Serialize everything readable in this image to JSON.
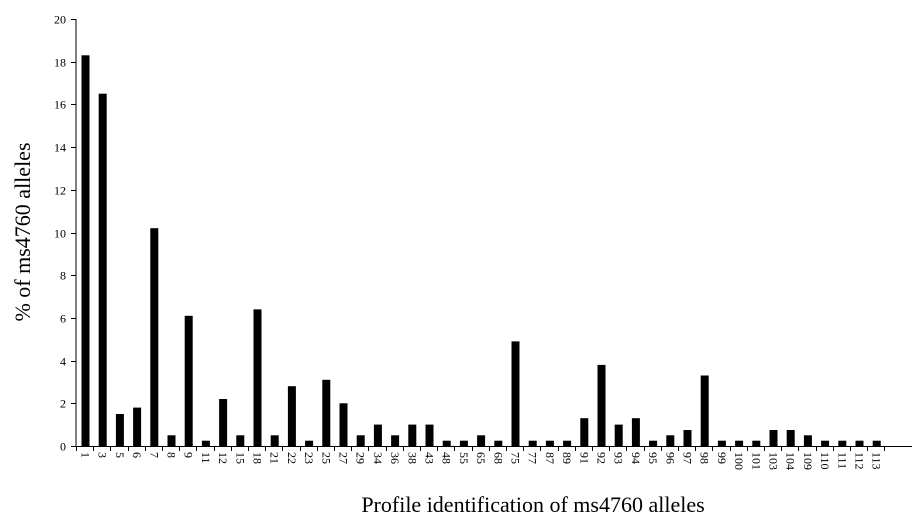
{
  "chart_data": {
    "type": "bar",
    "title": "",
    "xlabel": "Profile identification of ms4760 alleles",
    "ylabel": "% of ms4760 alleles",
    "ylim": [
      0,
      20
    ],
    "yticks": [
      "0",
      "2",
      "4",
      "6",
      "8",
      "10",
      "12",
      "14",
      "16",
      "18",
      "20"
    ],
    "grid": false,
    "legend": "none",
    "bar_color": "#000000",
    "categories": [
      "1",
      "3",
      "5",
      "6",
      "7",
      "8",
      "9",
      "11",
      "12",
      "15",
      "18",
      "21",
      "22",
      "23",
      "25",
      "27",
      "29",
      "34",
      "36",
      "38",
      "43",
      "48",
      "55",
      "65",
      "68",
      "75",
      "77",
      "87",
      "89",
      "91",
      "92",
      "93",
      "94",
      "95",
      "96",
      "97",
      "98",
      "99",
      "100",
      "101",
      "103",
      "104",
      "109",
      "110",
      "111",
      "112",
      "113"
    ],
    "values": [
      18.3,
      16.5,
      1.5,
      1.8,
      10.2,
      0.5,
      6.1,
      0.25,
      2.2,
      0.5,
      6.4,
      0.5,
      2.8,
      0.25,
      3.1,
      2.0,
      0.5,
      1.0,
      0.5,
      1.0,
      1.0,
      0.25,
      0.25,
      0.5,
      0.25,
      4.9,
      0.25,
      0.25,
      0.25,
      1.3,
      3.8,
      1.0,
      1.3,
      0.25,
      0.5,
      0.75,
      3.3,
      0.25,
      0.25,
      0.25,
      0.75,
      0.75,
      0.5,
      0.25,
      0.25,
      0.25,
      0.25
    ]
  }
}
